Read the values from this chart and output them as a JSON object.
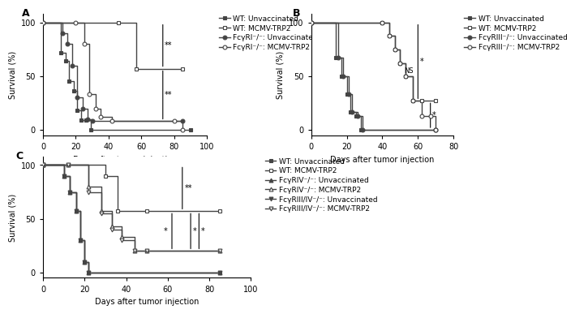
{
  "panel_A": {
    "title": "A",
    "xlabel": "Days after tumor injection",
    "ylabel": "Survival (%)",
    "xlim": [
      0,
      100
    ],
    "ylim": [
      -5,
      108
    ],
    "xticks": [
      0,
      20,
      40,
      60,
      80,
      100
    ],
    "yticks": [
      0,
      50,
      100
    ],
    "curves": [
      {
        "label": "WT: Unvaccinated",
        "marker": "s",
        "fillstyle": "full",
        "color": "#444444",
        "x": [
          0,
          11,
          14,
          16,
          19,
          21,
          23,
          26,
          29,
          90
        ],
        "y": [
          100,
          72,
          64,
          45,
          36,
          18,
          9,
          9,
          0,
          0
        ]
      },
      {
        "label": "WT: MCMV-TRP2",
        "marker": "s",
        "fillstyle": "none",
        "color": "#444444",
        "x": [
          0,
          46,
          57,
          85
        ],
        "y": [
          100,
          100,
          57,
          57
        ]
      },
      {
        "label": "FcγRI⁻/⁻: Unvaccinated",
        "marker": "o",
        "fillstyle": "full",
        "color": "#444444",
        "x": [
          0,
          12,
          15,
          18,
          21,
          24,
          27,
          30,
          85
        ],
        "y": [
          100,
          90,
          80,
          60,
          30,
          20,
          10,
          8,
          8
        ]
      },
      {
        "label": "FcγRI⁻/⁻: MCMV-TRP2",
        "marker": "o",
        "fillstyle": "none",
        "color": "#444444",
        "x": [
          0,
          20,
          25,
          28,
          32,
          35,
          42,
          80,
          85
        ],
        "y": [
          100,
          100,
          80,
          33,
          20,
          12,
          8,
          8,
          0
        ]
      }
    ]
  },
  "panel_B": {
    "title": "B",
    "xlabel": "Days after tumor injection",
    "ylabel": "Survival (%)",
    "xlim": [
      0,
      80
    ],
    "ylim": [
      -5,
      108
    ],
    "xticks": [
      0,
      20,
      40,
      60,
      80
    ],
    "yticks": [
      0,
      50,
      100
    ],
    "curves": [
      {
        "label": "WT: Unvaccinated",
        "marker": "s",
        "fillstyle": "full",
        "color": "#444444",
        "x": [
          0,
          14,
          17,
          20,
          22,
          25,
          28,
          70
        ],
        "y": [
          100,
          67,
          50,
          33,
          17,
          13,
          0,
          0
        ]
      },
      {
        "label": "WT: MCMV-TRP2",
        "marker": "s",
        "fillstyle": "none",
        "color": "#444444",
        "x": [
          0,
          40,
          44,
          47,
          50,
          53,
          57,
          62,
          70
        ],
        "y": [
          100,
          100,
          88,
          75,
          62,
          50,
          27,
          27,
          27
        ]
      },
      {
        "label": "FcγRIII⁻/⁻: Unvaccinated",
        "marker": "o",
        "fillstyle": "full",
        "color": "#444444",
        "x": [
          0,
          15,
          18,
          21,
          23,
          26,
          29,
          70
        ],
        "y": [
          100,
          67,
          50,
          33,
          17,
          13,
          0,
          0
        ]
      },
      {
        "label": "FcγRIII⁻/⁻: MCMV-TRP2",
        "marker": "o",
        "fillstyle": "none",
        "color": "#444444",
        "x": [
          0,
          40,
          44,
          47,
          50,
          53,
          57,
          62,
          67,
          70
        ],
        "y": [
          100,
          100,
          88,
          75,
          62,
          50,
          27,
          13,
          13,
          0
        ]
      }
    ]
  },
  "panel_C": {
    "title": "C",
    "xlabel": "Days after tumor injection",
    "ylabel": "Survival (%)",
    "xlim": [
      0,
      100
    ],
    "ylim": [
      -5,
      108
    ],
    "xticks": [
      0,
      20,
      40,
      60,
      80,
      100
    ],
    "yticks": [
      0,
      50,
      100
    ],
    "curves": [
      {
        "label": "WT: Unvaccinated",
        "marker": "s",
        "fillstyle": "full",
        "color": "#444444",
        "x": [
          0,
          10,
          13,
          16,
          18,
          20,
          22,
          85
        ],
        "y": [
          100,
          90,
          75,
          57,
          30,
          10,
          0,
          0
        ]
      },
      {
        "label": "WT: MCMV-TRP2",
        "marker": "s",
        "fillstyle": "none",
        "color": "#444444",
        "x": [
          0,
          12,
          30,
          36,
          50,
          85
        ],
        "y": [
          100,
          100,
          90,
          57,
          57,
          57
        ]
      },
      {
        "label": "FcγRIV⁻/⁻: Unvaccinated",
        "marker": "^",
        "fillstyle": "full",
        "color": "#444444",
        "x": [
          0,
          10,
          13,
          16,
          18,
          20,
          22,
          85
        ],
        "y": [
          100,
          90,
          75,
          57,
          30,
          10,
          0,
          0
        ]
      },
      {
        "label": "FcγRIV⁻/⁻: MCMV-TRP2",
        "marker": "^",
        "fillstyle": "none",
        "color": "#444444",
        "x": [
          0,
          12,
          22,
          28,
          33,
          38,
          44,
          50,
          85
        ],
        "y": [
          100,
          100,
          80,
          57,
          43,
          33,
          20,
          20,
          20
        ]
      },
      {
        "label": "FcγRIII/IV⁻/⁻: Unvaccinated",
        "marker": "v",
        "fillstyle": "full",
        "color": "#444444",
        "x": [
          0,
          10,
          13,
          16,
          18,
          20,
          22,
          85
        ],
        "y": [
          100,
          90,
          75,
          57,
          30,
          10,
          0,
          0
        ]
      },
      {
        "label": "FcγRIII/IV⁻/⁻: MCMV-TRP2",
        "marker": "v",
        "fillstyle": "none",
        "color": "#444444",
        "x": [
          0,
          12,
          22,
          28,
          33,
          38,
          44,
          50,
          85
        ],
        "y": [
          100,
          100,
          75,
          55,
          40,
          30,
          20,
          20,
          20
        ]
      }
    ]
  },
  "background_color": "#ffffff",
  "fontsize_label": 7,
  "fontsize_tick": 7,
  "fontsize_legend": 6.5,
  "fontsize_title": 9
}
